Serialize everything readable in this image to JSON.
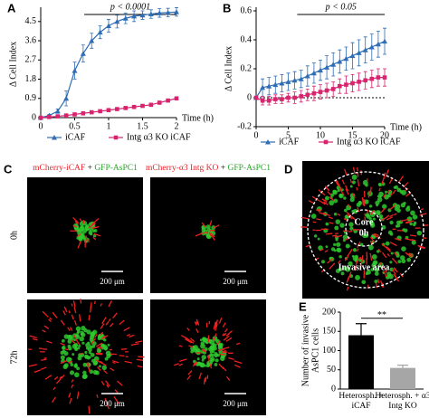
{
  "chart_data": [
    {
      "type": "line",
      "panel": "A",
      "ylabel": "Δ Cell Index",
      "xlabel": "Time (h)",
      "annotation": "p < 0.0001",
      "xlim": [
        0,
        2
      ],
      "xticks": [
        0,
        0.5,
        1,
        1.5,
        2
      ],
      "ylim": [
        0,
        5
      ],
      "yticks": [
        0,
        0.9,
        1.8,
        2.7,
        3.6,
        4.5
      ],
      "x": [
        0,
        0.125,
        0.25,
        0.375,
        0.5,
        0.625,
        0.75,
        0.875,
        1,
        1.125,
        1.25,
        1.375,
        1.5,
        1.625,
        1.75,
        1.875,
        2
      ],
      "series": [
        {
          "name": "iCAF",
          "color": "#2f6db5",
          "marker": "triangle",
          "values": [
            0,
            0.1,
            0.3,
            0.9,
            2.2,
            3.0,
            3.6,
            4.0,
            4.3,
            4.5,
            4.65,
            4.75,
            4.8,
            4.85,
            4.9,
            4.92,
            4.95
          ],
          "errors": [
            0,
            0.05,
            0.1,
            0.35,
            0.4,
            0.4,
            0.35,
            0.3,
            0.3,
            0.3,
            0.25,
            0.25,
            0.2,
            0.2,
            0.2,
            0.2,
            0.2
          ]
        },
        {
          "name": "Intg α3 KO iCAF",
          "color": "#d6246e",
          "marker": "square",
          "values": [
            0,
            0.03,
            0.06,
            0.1,
            0.15,
            0.2,
            0.25,
            0.3,
            0.35,
            0.4,
            0.45,
            0.5,
            0.55,
            0.6,
            0.7,
            0.8,
            0.9
          ],
          "errors": [
            0,
            0.02,
            0.02,
            0.03,
            0.03,
            0.03,
            0.03,
            0.03,
            0.04,
            0.04,
            0.04,
            0.04,
            0.04,
            0.04,
            0.05,
            0.05,
            0.05
          ]
        }
      ]
    },
    {
      "type": "line",
      "panel": "B",
      "ylabel": "Δ Cell Index",
      "xlabel": "Time (h)",
      "annotation": "p < 0.05",
      "zero_line": true,
      "xlim": [
        0,
        20
      ],
      "xticks": [
        0,
        5,
        10,
        15,
        20
      ],
      "ylim": [
        -0.2,
        0.6
      ],
      "yticks": [
        -0.2,
        0,
        0.2,
        0.4,
        0.6
      ],
      "x": [
        0,
        1,
        2,
        3,
        4,
        5,
        6,
        7,
        8,
        9,
        10,
        11,
        12,
        13,
        14,
        15,
        16,
        17,
        18,
        19,
        20
      ],
      "series": [
        {
          "name": "iCAF",
          "color": "#2f6db5",
          "marker": "triangle",
          "values": [
            0,
            0.07,
            0.08,
            0.09,
            0.1,
            0.11,
            0.12,
            0.13,
            0.15,
            0.17,
            0.19,
            0.21,
            0.23,
            0.25,
            0.27,
            0.29,
            0.31,
            0.33,
            0.35,
            0.37,
            0.39
          ],
          "errors": [
            0,
            0.06,
            0.06,
            0.06,
            0.06,
            0.06,
            0.06,
            0.06,
            0.07,
            0.07,
            0.07,
            0.08,
            0.08,
            0.08,
            0.08,
            0.09,
            0.09,
            0.09,
            0.09,
            0.09,
            0.09
          ]
        },
        {
          "name": "Intg α3 KO iCAF",
          "color": "#d6246e",
          "marker": "square",
          "values": [
            0,
            -0.02,
            -0.02,
            -0.01,
            -0.01,
            0,
            0,
            0.01,
            0.02,
            0.03,
            0.04,
            0.05,
            0.06,
            0.08,
            0.09,
            0.1,
            0.11,
            0.12,
            0.13,
            0.14,
            0.14
          ],
          "errors": [
            0,
            0.03,
            0.03,
            0.03,
            0.03,
            0.03,
            0.04,
            0.04,
            0.04,
            0.05,
            0.05,
            0.05,
            0.05,
            0.05,
            0.06,
            0.06,
            0.06,
            0.06,
            0.06,
            0.06,
            0.06
          ]
        }
      ]
    },
    {
      "type": "bar",
      "panel": "E",
      "ylabel": [
        "Number of invasive",
        "AsPC1 cells"
      ],
      "annotation": "**",
      "ylim": [
        0,
        200
      ],
      "yticks": [
        0,
        50,
        100,
        150,
        200
      ],
      "categories": [
        "Heterosph. + iCAF",
        "Heterosph. + α3 Intg KO"
      ],
      "values": [
        140,
        55
      ],
      "errors": [
        30,
        7
      ],
      "colors": [
        "#000000",
        "#a6a6a6"
      ]
    }
  ],
  "panel_c": {
    "letter": "C",
    "headers": [
      [
        {
          "text": "mCherry-iCAF",
          "color": "#e8232a"
        },
        {
          "text": " + ",
          "color": "#000000"
        },
        {
          "text": "GFP-AsPC1",
          "color": "#2aa52a"
        }
      ],
      [
        {
          "text": "mCherry-α3 Intg KO",
          "color": "#e8232a"
        },
        {
          "text": " + ",
          "color": "#000000"
        },
        {
          "text": "GFP-AsPC1",
          "color": "#2aa52a"
        }
      ]
    ],
    "rows": [
      "0h",
      "72h"
    ],
    "scale_bar": "200 μm"
  },
  "panel_d": {
    "letter": "D",
    "core": "Core",
    "core_time": "0h",
    "area": "Invasive area"
  }
}
